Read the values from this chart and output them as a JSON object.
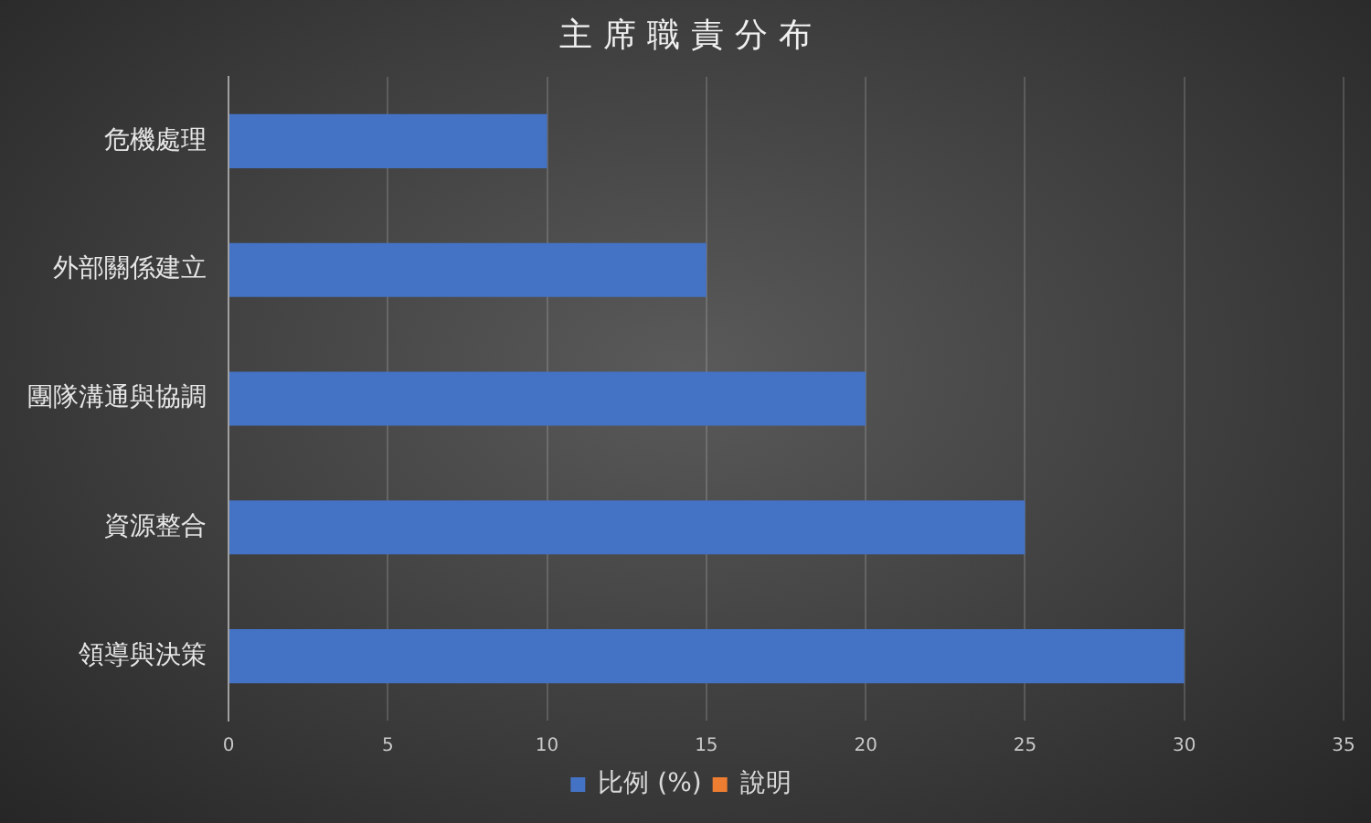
{
  "chart_data": {
    "type": "bar",
    "title": "主席職責分布",
    "orientation": "horizontal",
    "categories": [
      "危機處理",
      "外部關係建立",
      "團隊溝通與協調",
      "資源整合",
      "領導與決策"
    ],
    "series": [
      {
        "name": "比例 (%)",
        "color": "#4472c4",
        "values": [
          10,
          15,
          20,
          25,
          30
        ]
      },
      {
        "name": "說明",
        "color": "#ed7d31",
        "values": [
          null,
          null,
          null,
          null,
          null
        ]
      }
    ],
    "xlim": [
      0,
      35
    ],
    "xticks": [
      0,
      5,
      10,
      15,
      20,
      25,
      30,
      35
    ],
    "grid": "x",
    "legend": "bottom"
  }
}
